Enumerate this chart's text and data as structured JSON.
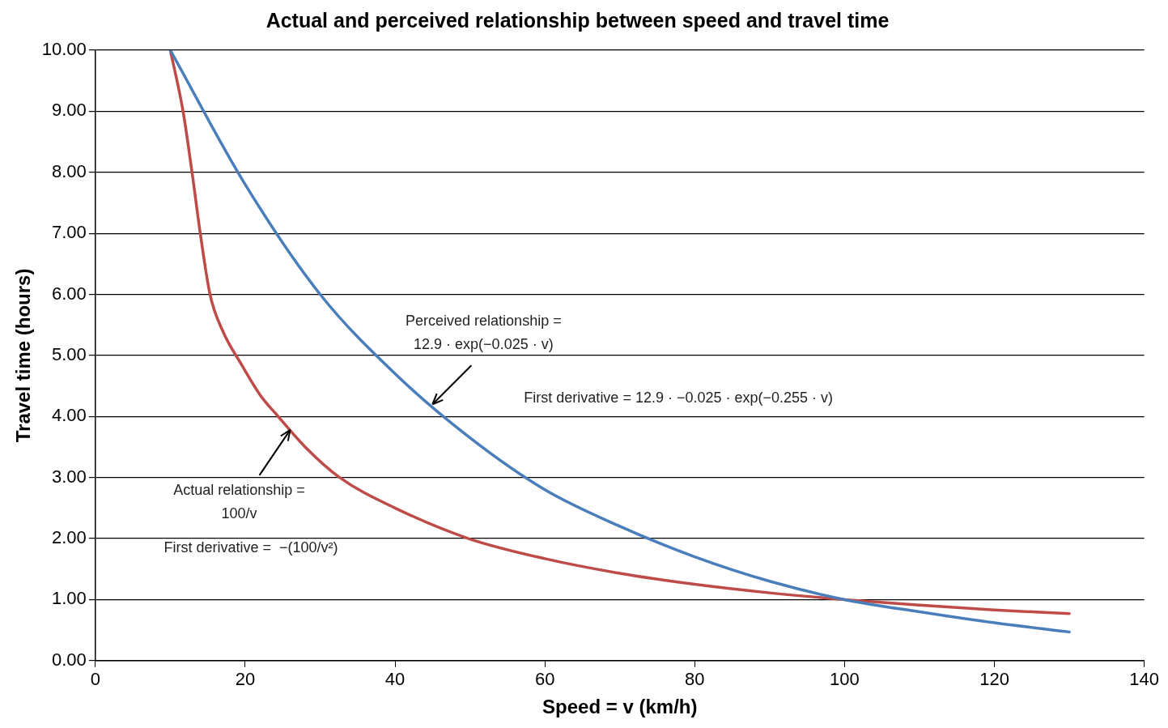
{
  "chart_data": {
    "type": "line",
    "title": "Actual and perceived relationship between speed and travel time",
    "xlabel": "Speed = v (km/h)",
    "ylabel": "Travel time (hours)",
    "xlim": [
      0,
      140
    ],
    "xticks": [
      0,
      20,
      40,
      60,
      80,
      100,
      120,
      140
    ],
    "ylim": [
      0,
      10
    ],
    "yticks": [
      {
        "value": 0,
        "label": "0.00"
      },
      {
        "value": 1,
        "label": "1.00"
      },
      {
        "value": 2,
        "label": "2.00"
      },
      {
        "value": 3,
        "label": "3.00"
      },
      {
        "value": 4,
        "label": "4.00"
      },
      {
        "value": 5,
        "label": "5.00"
      },
      {
        "value": 6,
        "label": "6.00"
      },
      {
        "value": 7,
        "label": "7.00"
      },
      {
        "value": 8,
        "label": "8.00"
      },
      {
        "value": 9,
        "label": "9.00"
      },
      {
        "value": 10,
        "label": "10.00"
      }
    ],
    "grid": "y",
    "legend": false,
    "marker": "none",
    "line_style": "solid",
    "series": [
      {
        "color": "#4a7ebb",
        "x": [
          10,
          20,
          30,
          40,
          50,
          60,
          70,
          80,
          90,
          100,
          110,
          120,
          130
        ],
        "values": [
          10,
          7.8,
          6.0,
          4.7,
          3.65,
          2.8,
          2.2,
          1.7,
          1.3,
          1.0,
          0.8,
          0.62,
          0.47
        ]
      },
      {
        "color": "#be4b48",
        "x": [
          10,
          11.7,
          12.9,
          14,
          15.3,
          17,
          19.5,
          22,
          24.4,
          28,
          32.6,
          40,
          49.8,
          60,
          70,
          80,
          90,
          100,
          110,
          120,
          130
        ],
        "values": [
          10,
          9,
          8,
          7,
          6,
          5.4,
          4.85,
          4.35,
          4,
          3.5,
          3,
          2.5,
          2,
          1.67,
          1.43,
          1.25,
          1.11,
          1,
          0.91,
          0.83,
          0.77
        ]
      }
    ],
    "annotations": [
      {
        "text": "Perceived relationship =\n12.9 · exp(−0.025 · v)",
        "x": 45,
        "y": 4.2
      },
      {
        "text": "Actual relationship =\n100/v",
        "x": 26,
        "y": 3.78
      },
      "First derivative = 12.9 · −0.025 · exp(−0.255 · v)",
      "First derivative =  −(100/v²)"
    ]
  }
}
